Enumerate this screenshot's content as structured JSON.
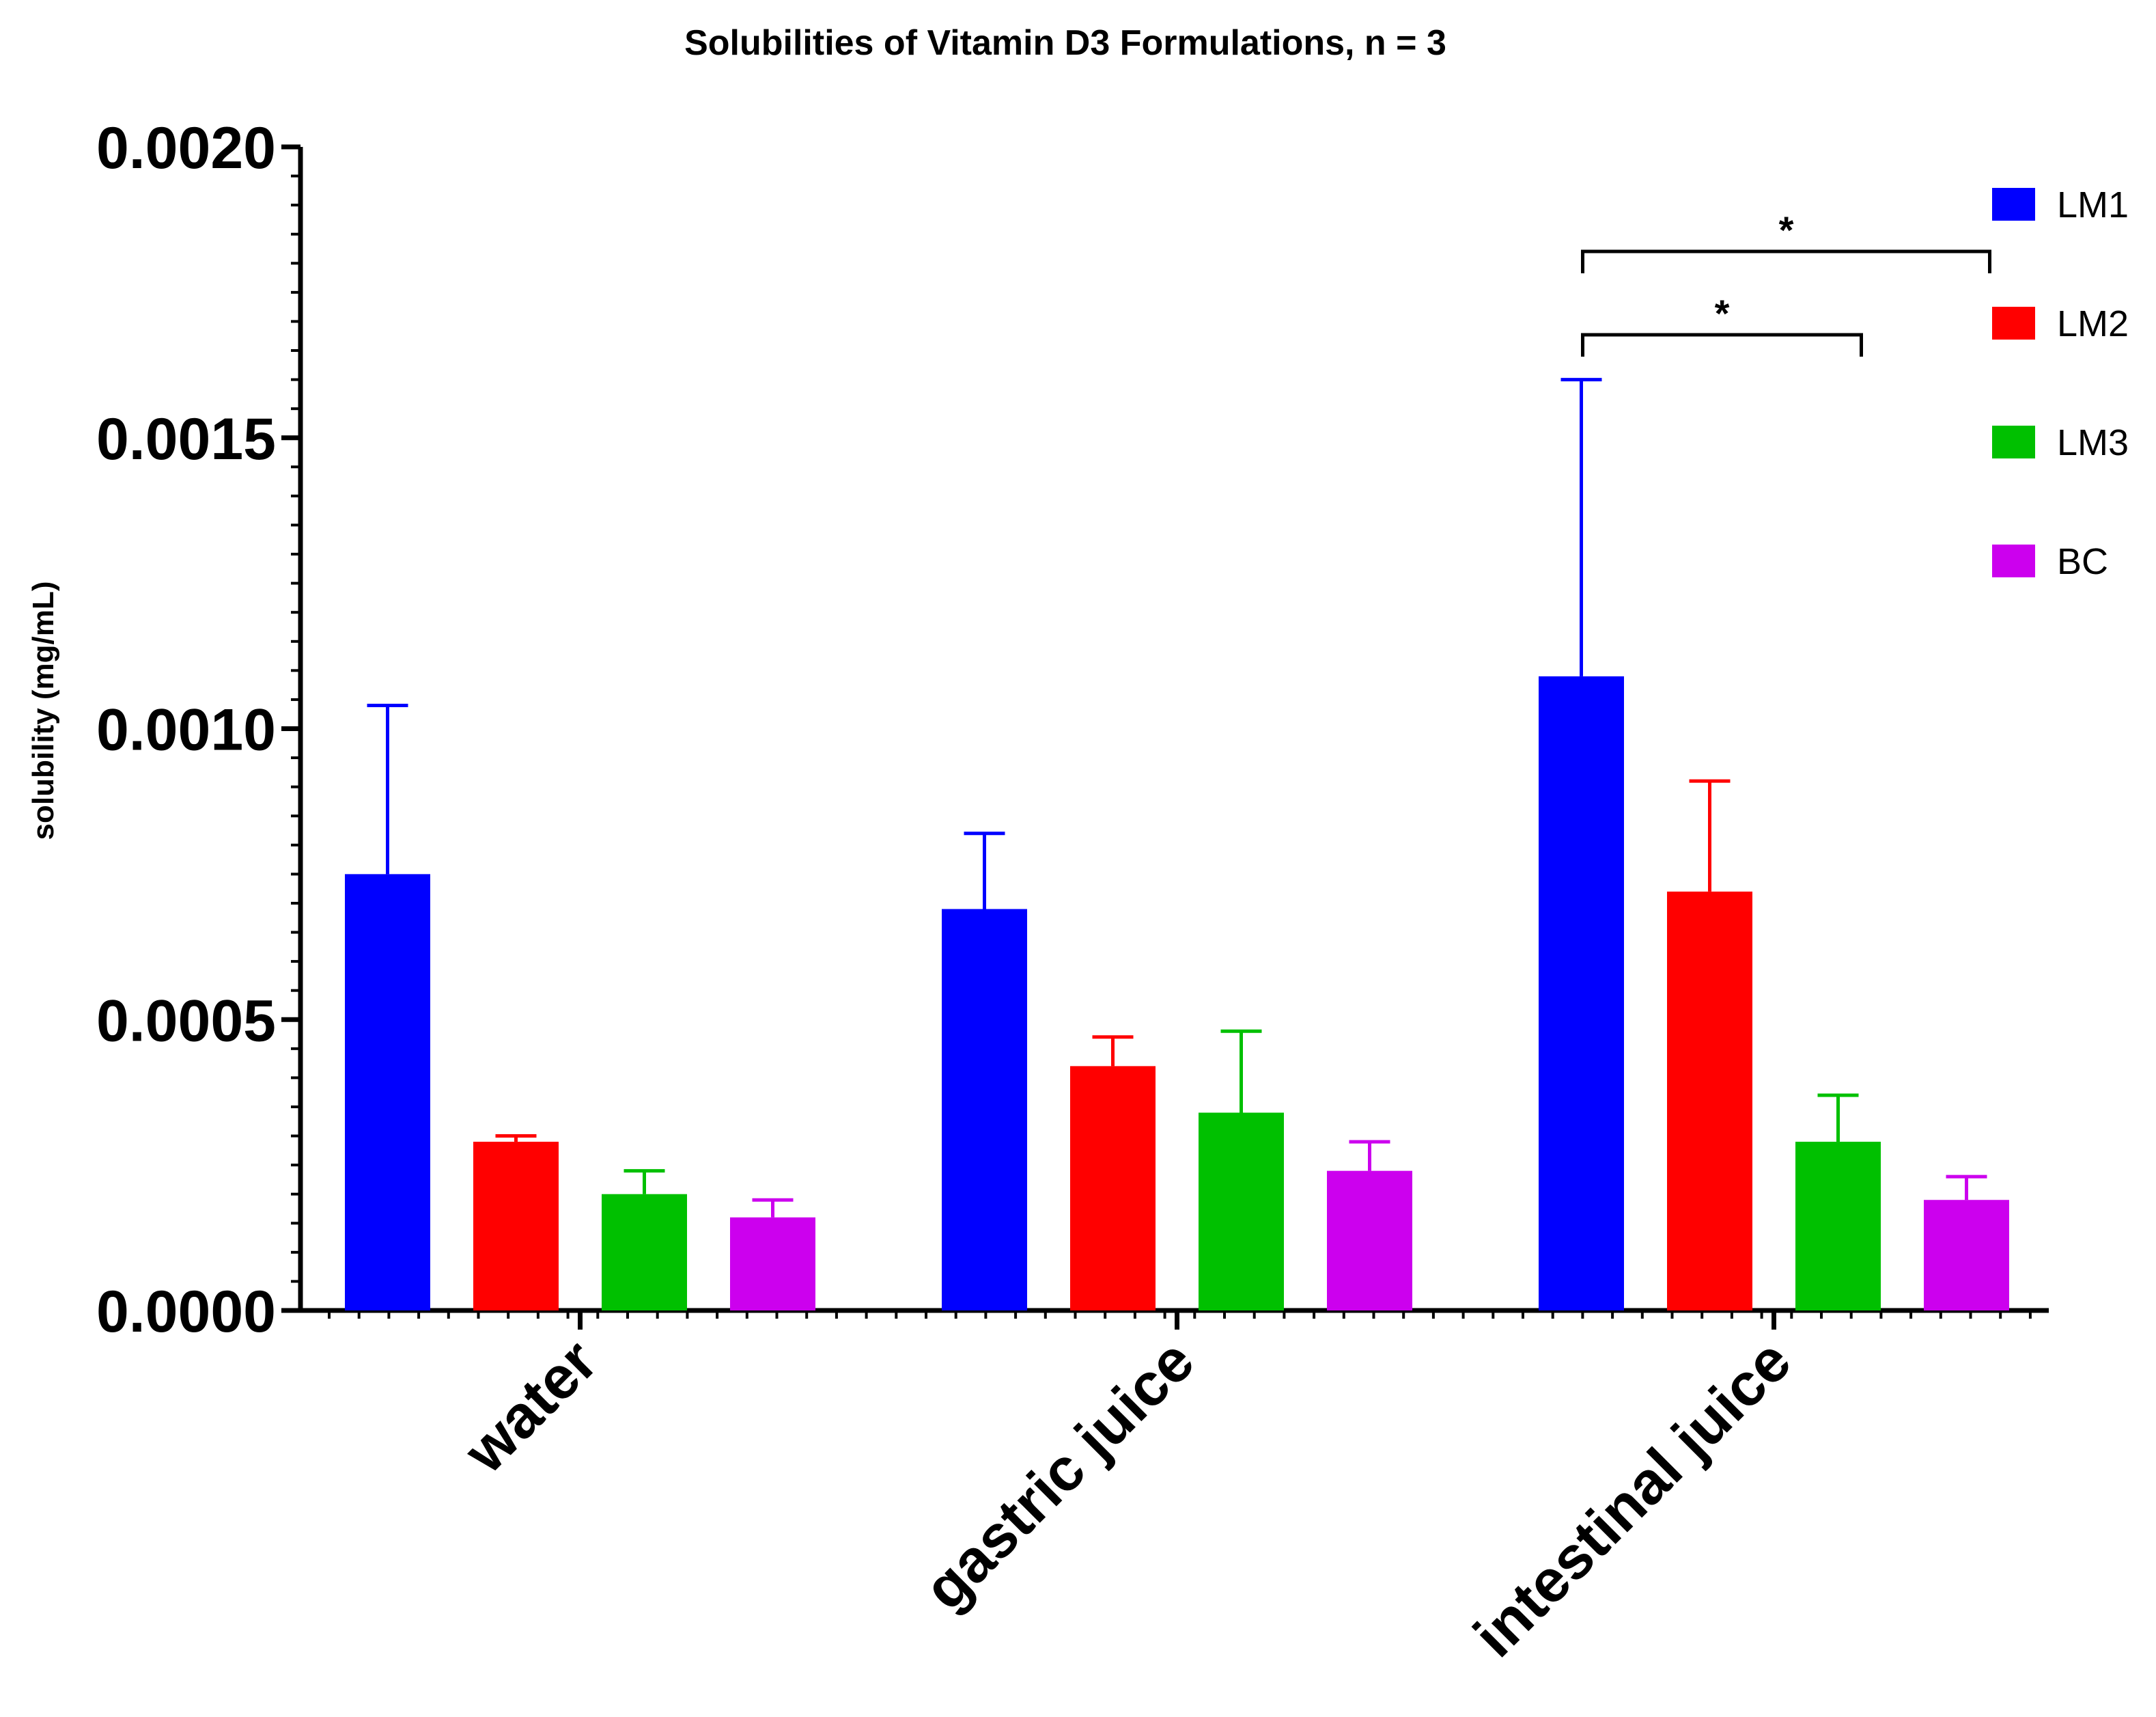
{
  "chart_data": {
    "type": "bar",
    "title": "Solubilities of Vitamin D3 Formulations, n = 3",
    "xlabel": "",
    "ylabel": "solubility (mg/mL)",
    "ylim": [
      0,
      0.002
    ],
    "yticks": [
      "0.0000",
      "0.0005",
      "0.0010",
      "0.0015",
      "0.0020"
    ],
    "categories": [
      "water",
      "gastric juice",
      "intestinal juice"
    ],
    "series": [
      {
        "name": "LM1",
        "color": "#0000ff",
        "values": [
          0.00075,
          0.00069,
          0.00109
        ],
        "errors": [
          0.00029,
          0.00013,
          0.00051
        ]
      },
      {
        "name": "LM2",
        "color": "#ff0000",
        "values": [
          0.00029,
          0.00042,
          0.00072
        ],
        "errors": [
          1e-05,
          5e-05,
          0.00019
        ]
      },
      {
        "name": "LM3",
        "color": "#00c000",
        "values": [
          0.0002,
          0.00034,
          0.00029
        ],
        "errors": [
          4e-05,
          0.00014,
          8e-05
        ]
      },
      {
        "name": "BC",
        "color": "#cc00ee",
        "values": [
          0.00016,
          0.00024,
          0.00019
        ],
        "errors": [
          3e-05,
          5e-05,
          4e-05
        ]
      }
    ],
    "annotations": [
      {
        "label": "*",
        "category": "intestinal juice",
        "from": "LM1",
        "to": "LM3"
      },
      {
        "label": "*",
        "category": "intestinal juice",
        "from": "LM1",
        "to": "BC"
      }
    ],
    "legend": "top-right"
  }
}
